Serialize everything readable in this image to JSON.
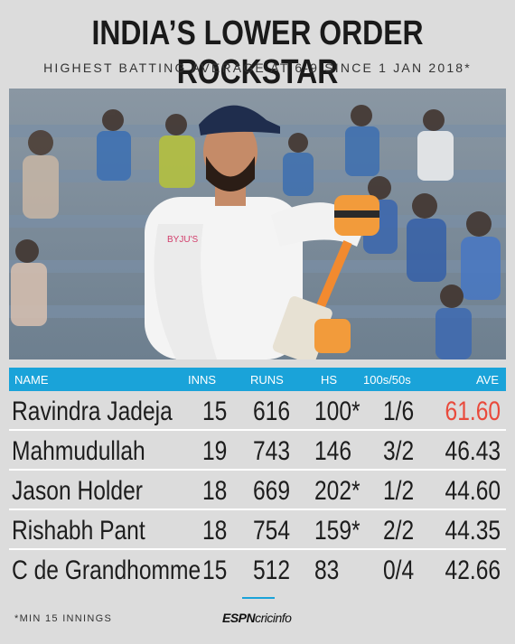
{
  "title": "INDIA’S LOWER ORDER ROCKSTAR",
  "subtitle": "HIGHEST BATTING AVERAGE AT 6-9 SINCE 1 JAN 2018*",
  "columns": {
    "name": "NAME",
    "inns": "INNS",
    "runs": "RUNS",
    "hs": "HS",
    "hundreds_fifties": "100s/50s",
    "ave": "AVE"
  },
  "rows": [
    {
      "name": "Ravindra Jadeja",
      "inns": "15",
      "runs": "616",
      "hs": "100*",
      "hundreds_fifties": "1/6",
      "ave": "61.60"
    },
    {
      "name": "Mahmudullah",
      "inns": "19",
      "runs": "743",
      "hs": "146",
      "hundreds_fifties": "3/2",
      "ave": "46.43"
    },
    {
      "name": "Jason Holder",
      "inns": "18",
      "runs": "669",
      "hs": "202*",
      "hundreds_fifties": "1/2",
      "ave": "44.60"
    },
    {
      "name": "Rishabh Pant",
      "inns": "18",
      "runs": "754",
      "hs": "159*",
      "hundreds_fifties": "2/2",
      "ave": "44.35"
    },
    {
      "name": "C de Grandhomme",
      "inns": "15",
      "runs": "512",
      "hs": "83",
      "hundreds_fifties": "0/4",
      "ave": "42.66"
    }
  ],
  "footnote": "*MIN 15 INNINGS",
  "brand": {
    "bold": "ESPN",
    "rest": "cricinfo"
  },
  "colors": {
    "accent": "#1aa3d9",
    "highlight": "#e94a3c",
    "background": "#dcdcdc"
  }
}
